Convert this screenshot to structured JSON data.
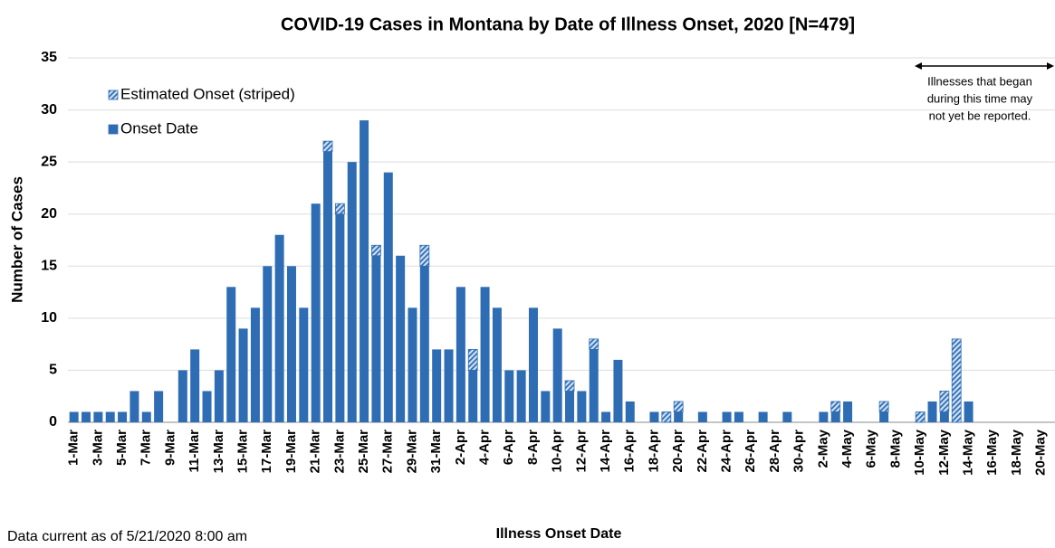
{
  "chart_data": {
    "type": "stacked_bar",
    "title": "COVID-19 Cases in Montana by Date of Illness Onset, 2020 [N=479]",
    "x_label": "Illness Onset Date",
    "y_label": "Number of Cases",
    "footnote": "Data current as of 5/21/2020 8:00 am",
    "annotation": [
      "Illnesses that began",
      "during this time may",
      "not yet be reported."
    ],
    "categories": [
      "1-Mar",
      null,
      "3-Mar",
      null,
      "5-Mar",
      null,
      "7-Mar",
      null,
      "9-Mar",
      null,
      "11-Mar",
      null,
      "13-Mar",
      null,
      "15-Mar",
      null,
      "17-Mar",
      null,
      "19-Mar",
      null,
      "21-Mar",
      null,
      "23-Mar",
      null,
      "25-Mar",
      null,
      "27-Mar",
      null,
      "29-Mar",
      null,
      "31-Mar",
      null,
      "2-Apr",
      null,
      "4-Apr",
      null,
      "6-Apr",
      null,
      "8-Apr",
      null,
      "10-Apr",
      null,
      "12-Apr",
      null,
      "14-Apr",
      null,
      "16-Apr",
      null,
      "18-Apr",
      null,
      "20-Apr",
      null,
      "22-Apr",
      null,
      "24-Apr",
      null,
      "26-Apr",
      null,
      "28-Apr",
      null,
      "30-Apr",
      null,
      "2-May",
      null,
      "4-May",
      null,
      "6-May",
      null,
      "8-May",
      null,
      "10-May",
      null,
      "12-May",
      null,
      "14-May",
      null,
      "16-May",
      null,
      "18-May",
      null,
      "20-May"
    ],
    "series": [
      {
        "name": "Onset Date",
        "color": "#2e6db4",
        "striped": false,
        "values": [
          1,
          1,
          1,
          1,
          1,
          3,
          1,
          3,
          0,
          5,
          7,
          3,
          5,
          13,
          9,
          11,
          15,
          18,
          15,
          11,
          21,
          26,
          20,
          25,
          29,
          16,
          24,
          16,
          11,
          15,
          7,
          7,
          13,
          5,
          13,
          11,
          5,
          5,
          11,
          3,
          9,
          3,
          3,
          7,
          1,
          6,
          2,
          0,
          1,
          0,
          1,
          0,
          1,
          0,
          1,
          1,
          0,
          1,
          0,
          1,
          0,
          0,
          1,
          1,
          2,
          0,
          0,
          1,
          0,
          0,
          0,
          2,
          1,
          0,
          2,
          0,
          0,
          0,
          0,
          0,
          0
        ]
      },
      {
        "name": "Estimated Onset (striped)",
        "color": "#2e6db4",
        "striped": true,
        "values": [
          0,
          0,
          0,
          0,
          0,
          0,
          0,
          0,
          0,
          0,
          0,
          0,
          0,
          0,
          0,
          0,
          0,
          0,
          0,
          0,
          0,
          1,
          1,
          0,
          0,
          1,
          0,
          0,
          0,
          2,
          0,
          0,
          0,
          2,
          0,
          0,
          0,
          0,
          0,
          0,
          0,
          1,
          0,
          1,
          0,
          0,
          0,
          0,
          0,
          1,
          1,
          0,
          0,
          0,
          0,
          0,
          0,
          0,
          0,
          0,
          0,
          0,
          0,
          1,
          0,
          0,
          0,
          1,
          0,
          0,
          1,
          0,
          2,
          8,
          0,
          0,
          0,
          0,
          0,
          0,
          0
        ]
      }
    ],
    "ylim": [
      0,
      35
    ],
    "yticks": [
      0,
      5,
      10,
      15,
      20,
      25,
      30,
      35
    ],
    "grid": true
  }
}
